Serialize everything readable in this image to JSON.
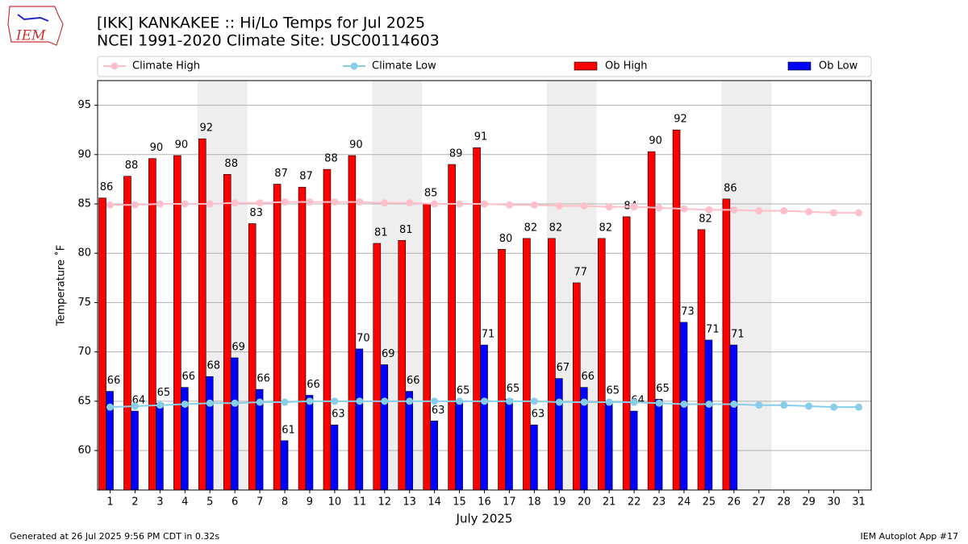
{
  "chart_data": {
    "type": "bar",
    "title": "[IKK] KANKAKEE :: Hi/Lo Temps for Jul 2025",
    "subtitle": "NCEI 1991-2020 Climate Site: USC00114603",
    "logo_text": "IEM",
    "xlabel": "July 2025",
    "ylabel": "Temperature ˚F",
    "footer_left": "Generated at 26 Jul 2025 9:56 PM CDT in 0.32s",
    "footer_right": "IEM Autoplot App #17",
    "x": [
      1,
      2,
      3,
      4,
      5,
      6,
      7,
      8,
      9,
      10,
      11,
      12,
      13,
      14,
      15,
      16,
      17,
      18,
      19,
      20,
      21,
      22,
      23,
      24,
      25,
      26,
      27,
      28,
      29,
      30,
      31
    ],
    "xlim": [
      0.5,
      31.5
    ],
    "ylim": [
      56,
      97.5
    ],
    "yticks": [
      60,
      65,
      70,
      75,
      80,
      85,
      90,
      95
    ],
    "grid": true,
    "weekend_days": [
      5,
      6,
      12,
      13,
      19,
      20,
      26,
      27
    ],
    "series": [
      {
        "name": "Climate High",
        "type": "line",
        "color": "#ffc0cb",
        "values": [
          84.9,
          84.9,
          85.0,
          85.0,
          85.0,
          85.1,
          85.1,
          85.2,
          85.2,
          85.2,
          85.2,
          85.1,
          85.1,
          85.0,
          85.0,
          85.0,
          84.9,
          84.9,
          84.8,
          84.8,
          84.7,
          84.7,
          84.6,
          84.5,
          84.4,
          84.4,
          84.3,
          84.3,
          84.2,
          84.1,
          84.1
        ]
      },
      {
        "name": "Climate Low",
        "type": "line",
        "color": "#87ceeb",
        "values": [
          64.4,
          64.5,
          64.6,
          64.7,
          64.8,
          64.8,
          64.9,
          64.9,
          65.0,
          65.0,
          65.0,
          65.0,
          65.0,
          65.0,
          65.0,
          65.0,
          65.0,
          65.0,
          64.9,
          64.9,
          64.9,
          64.9,
          64.8,
          64.7,
          64.7,
          64.7,
          64.6,
          64.6,
          64.5,
          64.4,
          64.4
        ]
      },
      {
        "name": "Ob High",
        "type": "bar",
        "color": "#ff0000",
        "values": [
          85.6,
          87.8,
          89.6,
          89.9,
          91.6,
          88.0,
          83.0,
          87.0,
          86.7,
          88.5,
          89.9,
          81.0,
          81.3,
          85.0,
          89.0,
          90.7,
          80.4,
          81.5,
          81.5,
          77.0,
          81.5,
          83.7,
          90.3,
          92.5,
          82.4,
          85.5,
          null,
          null,
          null,
          null,
          null
        ],
        "value_labels": [
          "86",
          "88",
          "90",
          "90",
          "92",
          "88",
          "83",
          "87",
          "87",
          "88",
          "90",
          "81",
          "81",
          "85",
          "89",
          "91",
          "80",
          "82",
          "82",
          "77",
          "82",
          "84",
          "90",
          "92",
          "82",
          "86",
          null,
          null,
          null,
          null,
          null
        ]
      },
      {
        "name": "Ob Low",
        "type": "bar",
        "color": "#0000ff",
        "values": [
          66.0,
          64.0,
          64.8,
          66.4,
          67.5,
          69.4,
          66.2,
          61.0,
          65.6,
          62.6,
          70.3,
          68.7,
          66.0,
          63.0,
          65.0,
          70.7,
          65.2,
          62.6,
          67.3,
          66.4,
          65.0,
          64.0,
          65.2,
          73.0,
          71.2,
          70.7,
          null,
          null,
          null,
          null,
          null
        ],
        "value_labels": [
          "66",
          "64",
          "65",
          "66",
          "68",
          "69",
          "66",
          "61",
          "66",
          "63",
          "70",
          "69",
          "66",
          "63",
          "65",
          "71",
          "65",
          "63",
          "67",
          "66",
          "65",
          "64",
          "65",
          "73",
          "71",
          "71",
          null,
          null,
          null,
          null,
          null
        ]
      }
    ]
  }
}
